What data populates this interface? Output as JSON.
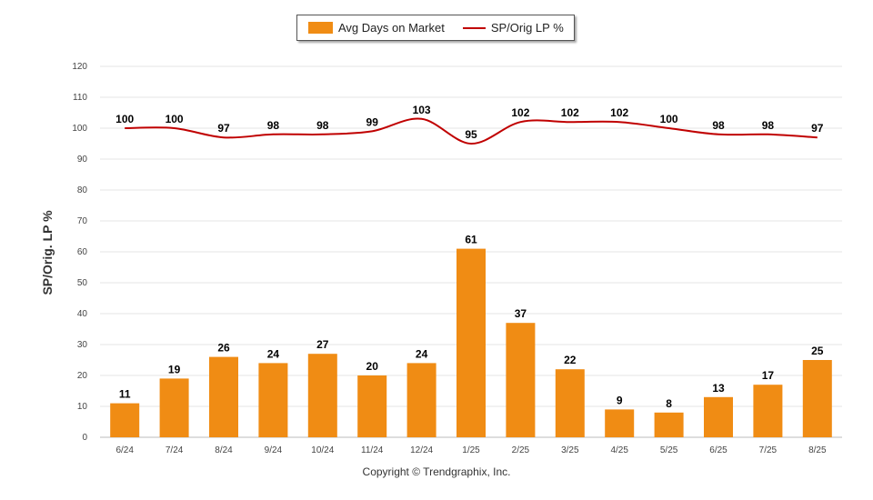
{
  "legend": {
    "bar_label": "Avg Days on Market",
    "line_label": "SP/Orig LP %"
  },
  "copyright": "Copyright © Trendgraphix, Inc.",
  "chart_data": {
    "type": "bar",
    "ylabel": "SP/Orig. LP %",
    "ylim": [
      0,
      120
    ],
    "yticks": [
      0,
      10,
      20,
      30,
      40,
      50,
      60,
      70,
      80,
      90,
      100,
      110,
      120
    ],
    "grid": true,
    "legend_position": "top-center",
    "categories": [
      "6/24",
      "7/24",
      "8/24",
      "9/24",
      "10/24",
      "11/24",
      "12/24",
      "1/25",
      "2/25",
      "3/25",
      "4/25",
      "5/25",
      "6/25",
      "7/25",
      "8/25"
    ],
    "series": [
      {
        "name": "Avg Days on Market",
        "type": "bar",
        "color": "#F08C14",
        "values": [
          11,
          19,
          26,
          24,
          27,
          20,
          24,
          61,
          37,
          22,
          9,
          8,
          13,
          17,
          25
        ]
      },
      {
        "name": "SP/Orig LP %",
        "type": "line",
        "color": "#C00000",
        "values": [
          100,
          100,
          97,
          98,
          98,
          99,
          103,
          95,
          102,
          102,
          102,
          100,
          98,
          98,
          97
        ]
      }
    ]
  }
}
